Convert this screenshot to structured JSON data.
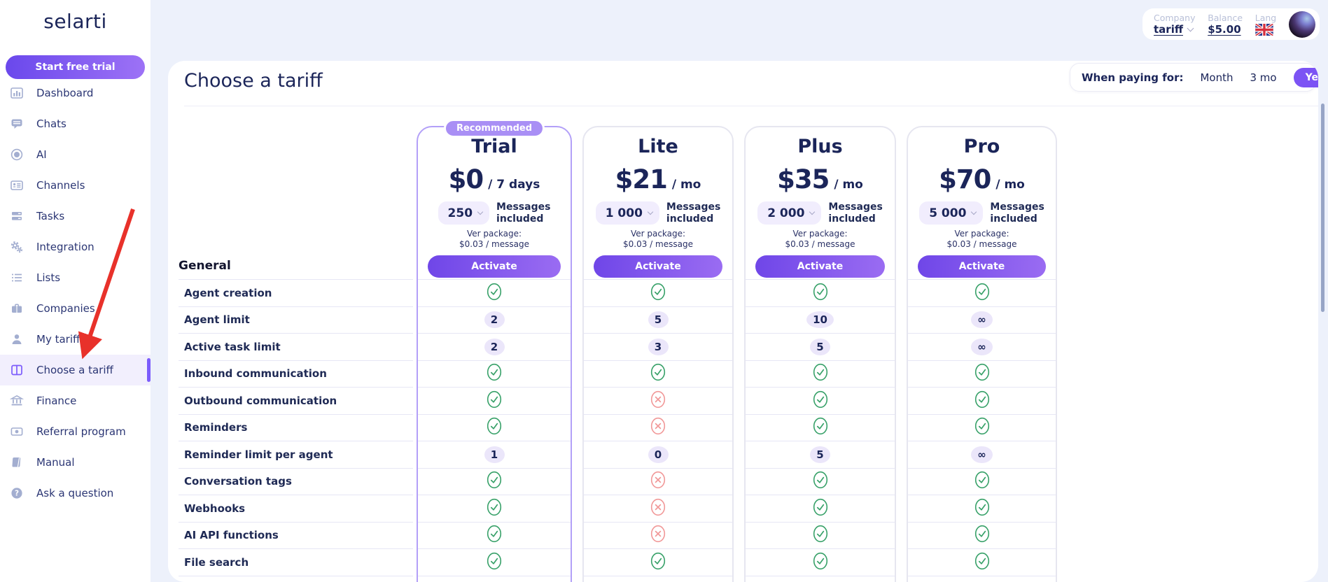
{
  "app": {
    "logo": "selarti"
  },
  "sidebar": {
    "cta": "Start free trial",
    "items": [
      {
        "label": "Dashboard",
        "icon": "bar-chart-icon"
      },
      {
        "label": "Chats",
        "icon": "chat-bubble-icon"
      },
      {
        "label": "AI",
        "icon": "ai-circle-icon"
      },
      {
        "label": "Channels",
        "icon": "id-card-icon"
      },
      {
        "label": "Tasks",
        "icon": "tasks-icon"
      },
      {
        "label": "Integration",
        "icon": "gears-icon"
      },
      {
        "label": "Lists",
        "icon": "list-icon"
      },
      {
        "label": "Companies",
        "icon": "briefcase-icon"
      },
      {
        "label": "My tariff",
        "icon": "user-icon"
      },
      {
        "label": "Choose a tariff",
        "icon": "columns-icon",
        "selected": true
      },
      {
        "label": "Finance",
        "icon": "bank-icon"
      },
      {
        "label": "Referral program",
        "icon": "banknote-icon"
      },
      {
        "label": "Manual",
        "icon": "book-icon"
      },
      {
        "label": "Ask a question",
        "icon": "question-circle-icon"
      }
    ]
  },
  "topbar": {
    "company_label": "Company",
    "company_value": "tariff",
    "balance_label": "Balance",
    "balance_value": "$5.00",
    "lang_label": "Lang",
    "lang_flag": "uk-flag-icon"
  },
  "page": {
    "title": "Choose a tariff"
  },
  "billing_toggle": {
    "label": "When paying for:",
    "options": [
      "Month",
      "3 mo",
      "Year"
    ],
    "selected": "Year"
  },
  "plans": [
    {
      "name": "Trial",
      "badge": "Recommended",
      "recommended": true,
      "price": "$0",
      "period": "/ 7 days",
      "messages": "250",
      "messages_label": "Messages\nincluded",
      "package_note": "Ver package:\n$0.03 / message",
      "cta": "Activate"
    },
    {
      "name": "Lite",
      "recommended": false,
      "price": "$21",
      "period": "/ mo",
      "messages": "1 000",
      "messages_label": "Messages\nincluded",
      "package_note": "Ver package:\n$0.03 / message",
      "cta": "Activate"
    },
    {
      "name": "Plus",
      "recommended": false,
      "price": "$35",
      "period": "/ mo",
      "messages": "2 000",
      "messages_label": "Messages\nincluded",
      "package_note": "Ver package:\n$0.03 / message",
      "cta": "Activate"
    },
    {
      "name": "Pro",
      "recommended": false,
      "price": "$70",
      "period": "/ mo",
      "messages": "5 000",
      "messages_label": "Messages\nincluded",
      "package_note": "Ver package:\n$0.03 / message",
      "cta": "Activate"
    }
  ],
  "table": {
    "section": "General",
    "rows": [
      {
        "feature": "Agent creation",
        "values": [
          "check",
          "check",
          "check",
          "check"
        ]
      },
      {
        "feature": "Agent limit",
        "values": [
          "2",
          "5",
          "10",
          "∞"
        ]
      },
      {
        "feature": "Active task limit",
        "values": [
          "2",
          "3",
          "5",
          "∞"
        ]
      },
      {
        "feature": "Inbound communication",
        "values": [
          "check",
          "check",
          "check",
          "check"
        ]
      },
      {
        "feature": "Outbound communication",
        "values": [
          "check",
          "cross",
          "check",
          "check"
        ]
      },
      {
        "feature": "Reminders",
        "values": [
          "check",
          "cross",
          "check",
          "check"
        ]
      },
      {
        "feature": "Reminder limit per agent",
        "values": [
          "1",
          "0",
          "5",
          "∞"
        ]
      },
      {
        "feature": "Conversation tags",
        "values": [
          "check",
          "cross",
          "check",
          "check"
        ]
      },
      {
        "feature": "Webhooks",
        "values": [
          "check",
          "cross",
          "check",
          "check"
        ]
      },
      {
        "feature": "AI API functions",
        "values": [
          "check",
          "cross",
          "check",
          "check"
        ]
      },
      {
        "feature": "File search",
        "values": [
          "check",
          "check",
          "check",
          "check"
        ]
      }
    ]
  },
  "annotation": {
    "arrow_color": "#e8312a"
  },
  "colors": {
    "accent": "#7c53f4",
    "check_green": "#38a169",
    "cross_red": "#f19898",
    "navy": "#1b2559"
  }
}
